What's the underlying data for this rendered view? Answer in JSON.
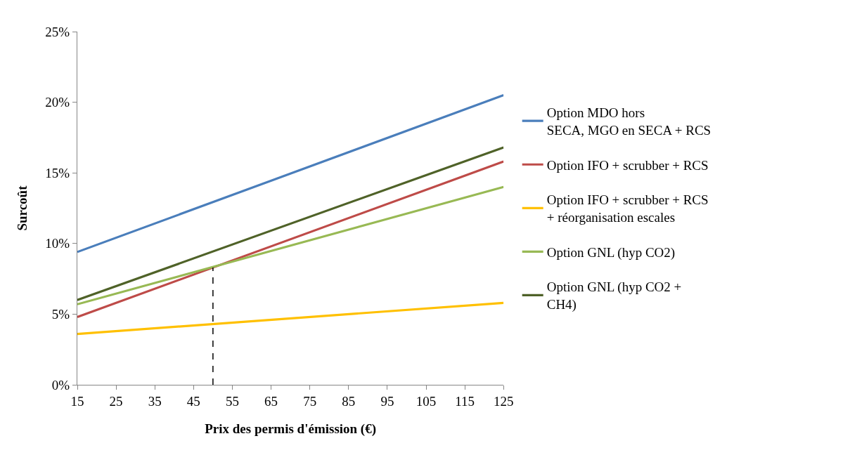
{
  "chart_data": {
    "type": "line",
    "xlabel": "Prix des permis d'émission (€)",
    "ylabel": "Surcoût",
    "x": [
      15,
      125
    ],
    "xlim": [
      15,
      125
    ],
    "xticks": [
      15,
      25,
      35,
      45,
      55,
      65,
      75,
      85,
      95,
      105,
      115,
      125
    ],
    "ylim": [
      0,
      25
    ],
    "yticks": [
      {
        "value": 0,
        "label": "0%"
      },
      {
        "value": 5,
        "label": "5%"
      },
      {
        "value": 10,
        "label": "10%"
      },
      {
        "value": 15,
        "label": "15%"
      },
      {
        "value": 20,
        "label": "20%"
      },
      {
        "value": 25,
        "label": "25%"
      }
    ],
    "legend": "right",
    "marker": "none",
    "line_style": "solid",
    "series": [
      {
        "name": "Option MDO hors\nSECA, MGO en SECA + RCS",
        "color": "#4a7ebb",
        "values": [
          9.4,
          20.5
        ]
      },
      {
        "name": "Option IFO + scrubber + RCS",
        "color": "#be4b48",
        "values": [
          4.8,
          15.8
        ]
      },
      {
        "name": "Option IFO + scrubber + RCS\n+ réorganisation escales",
        "color": "#ffc000",
        "values": [
          3.6,
          5.8
        ]
      },
      {
        "name": "Option GNL (hyp CO2)",
        "color": "#98b954",
        "values": [
          5.7,
          14.0
        ]
      },
      {
        "name": "Option GNL (hyp CO2 +\nCH4)",
        "color": "#4f6228",
        "values": [
          6.0,
          16.8
        ]
      },
      {
        "x": [
          50,
          50
        ],
        "color": "#000000",
        "values": [
          0,
          8.3
        ],
        "line_style": "dashed"
      }
    ]
  }
}
